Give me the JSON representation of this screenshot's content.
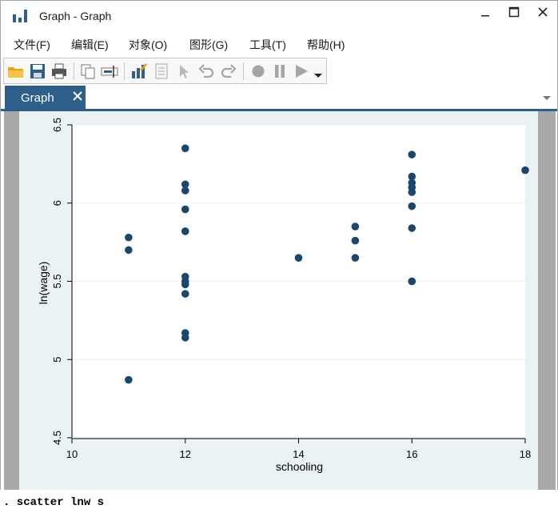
{
  "window": {
    "title": "Graph - Graph",
    "app_icon": "bar-chart-icon",
    "controls": [
      "minimize-icon",
      "maximize-icon",
      "close-icon"
    ]
  },
  "menu": {
    "items": [
      "文件(F)",
      "编辑(E)",
      "对象(O)",
      "图形(G)",
      "工具(T)",
      "帮助(H)"
    ]
  },
  "toolbar": {
    "icons": [
      "open-folder-icon",
      "save-icon",
      "print-icon",
      "copy-icon",
      "rename-icon",
      "graph-editor-icon",
      "properties-icon",
      "pointer-icon",
      "undo-icon",
      "redo-icon",
      "record-icon",
      "pause-icon",
      "play-icon",
      "dropdown-arrow-icon"
    ]
  },
  "tabs": [
    {
      "label": "Graph",
      "active": true,
      "close_icon": "close-icon"
    }
  ],
  "colors": {
    "accent": "#2e5f8b",
    "marker": "#1a476f",
    "plot_region": "#eaf2f3",
    "side_panel": "#a9a9a9"
  },
  "console": {
    "command": ". scatter lnw s"
  },
  "chart_data": {
    "type": "scatter",
    "xlabel": "schooling",
    "ylabel": "ln(wage)",
    "xlim": [
      10,
      18
    ],
    "ylim": [
      4.5,
      6.5
    ],
    "xticks": [
      "10",
      "12",
      "14",
      "16",
      "18"
    ],
    "yticks": [
      "4.5",
      "5",
      "5.5",
      "6",
      "6.5"
    ],
    "grid": true,
    "series": [
      {
        "x": [
          11,
          11,
          11,
          12,
          12,
          12,
          12,
          12,
          12,
          12,
          12,
          12,
          12,
          12,
          14,
          15,
          15,
          15,
          16,
          16,
          16,
          16,
          16,
          16,
          16,
          16,
          16,
          18
        ],
        "y": [
          5.78,
          5.7,
          4.87,
          6.35,
          6.12,
          6.08,
          5.96,
          5.82,
          5.53,
          5.5,
          5.48,
          5.42,
          5.17,
          5.14,
          5.65,
          5.85,
          5.76,
          5.65,
          6.31,
          6.17,
          6.13,
          6.1,
          6.07,
          5.98,
          5.84,
          5.5,
          5.5,
          6.21
        ]
      }
    ]
  }
}
